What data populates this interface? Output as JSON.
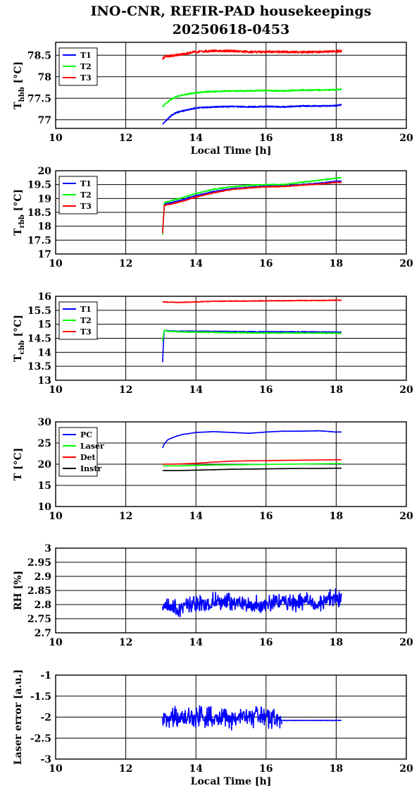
{
  "figure": {
    "title_line1": "INO-CNR, REFIR-PAD housekeepings",
    "title_line2": "20250618-0453"
  },
  "chart_data": [
    {
      "type": "line",
      "ylabel_main": "T",
      "ylabel_sub": "hbb",
      "ylabel_unit": "[°C]",
      "xlabel": "Local Time [h]",
      "xlim": [
        10,
        20
      ],
      "ylim": [
        76.8,
        78.8
      ],
      "xticks": [
        10,
        12,
        14,
        16,
        18,
        20
      ],
      "yticks": [
        77,
        77.5,
        78,
        78.5
      ],
      "ytick_labels": [
        "77",
        "77.5",
        "78",
        "78.5"
      ],
      "grid": true,
      "legend_position": "top-left",
      "series": [
        {
          "name": "T1",
          "color": "#0000ff",
          "noise": 0.015,
          "x": [
            13.05,
            13.1,
            13.2,
            13.3,
            13.4,
            13.5,
            13.6,
            13.8,
            14.0,
            14.3,
            14.6,
            15.0,
            15.5,
            16.0,
            16.5,
            17.0,
            17.5,
            18.0,
            18.15
          ],
          "values": [
            76.9,
            76.95,
            77.02,
            77.1,
            77.15,
            77.18,
            77.2,
            77.24,
            77.27,
            77.29,
            77.3,
            77.31,
            77.3,
            77.31,
            77.3,
            77.32,
            77.32,
            77.33,
            77.35
          ]
        },
        {
          "name": "T2",
          "color": "#00ff00",
          "noise": 0.015,
          "x": [
            13.05,
            13.1,
            13.2,
            13.3,
            13.4,
            13.5,
            13.6,
            13.8,
            14.0,
            14.3,
            14.6,
            15.0,
            15.5,
            16.0,
            16.5,
            17.0,
            17.5,
            18.0,
            18.15
          ],
          "values": [
            77.3,
            77.35,
            77.42,
            77.48,
            77.52,
            77.55,
            77.57,
            77.6,
            77.63,
            77.65,
            77.66,
            77.67,
            77.67,
            77.68,
            77.67,
            77.69,
            77.69,
            77.7,
            77.71
          ]
        },
        {
          "name": "T3",
          "color": "#ff0000",
          "noise": 0.025,
          "x": [
            13.05,
            13.1,
            13.2,
            13.4,
            13.6,
            13.8,
            14.0,
            14.5,
            15.0,
            15.5,
            16.0,
            16.5,
            17.0,
            17.5,
            18.0,
            18.15
          ],
          "values": [
            78.42,
            78.46,
            78.48,
            78.5,
            78.52,
            78.55,
            78.58,
            78.6,
            78.6,
            78.58,
            78.58,
            78.58,
            78.57,
            78.58,
            78.59,
            78.6
          ]
        }
      ]
    },
    {
      "type": "line",
      "ylabel_main": "T",
      "ylabel_sub": "rbb",
      "ylabel_unit": "[°C]",
      "xlabel": "",
      "xlim": [
        10,
        20
      ],
      "ylim": [
        17,
        20
      ],
      "xticks": [
        10,
        12,
        14,
        16,
        18,
        20
      ],
      "yticks": [
        17,
        17.5,
        18,
        18.5,
        19,
        19.5,
        20
      ],
      "ytick_labels": [
        "17",
        "17.5",
        "18",
        "18.5",
        "19",
        "19.5",
        "20"
      ],
      "grid": true,
      "legend_position": "top-left",
      "series": [
        {
          "name": "T1",
          "color": "#0000ff",
          "noise": 0.015,
          "x": [
            13.05,
            13.1,
            13.3,
            13.6,
            14.0,
            14.5,
            15.0,
            15.5,
            16.0,
            16.5,
            17.0,
            17.5,
            18.0,
            18.15
          ],
          "values": [
            17.8,
            18.8,
            18.85,
            18.95,
            19.1,
            19.25,
            19.35,
            19.4,
            19.45,
            19.45,
            19.5,
            19.55,
            19.62,
            19.63
          ]
        },
        {
          "name": "T2",
          "color": "#00ff00",
          "noise": 0.015,
          "x": [
            13.05,
            13.1,
            13.3,
            13.6,
            14.0,
            14.5,
            15.0,
            15.5,
            16.0,
            16.5,
            17.0,
            17.5,
            18.0,
            18.15
          ],
          "values": [
            17.7,
            18.85,
            18.92,
            19.02,
            19.18,
            19.33,
            19.42,
            19.47,
            19.5,
            19.5,
            19.58,
            19.65,
            19.73,
            19.75
          ]
        },
        {
          "name": "T3",
          "color": "#ff0000",
          "noise": 0.015,
          "x": [
            13.05,
            13.1,
            13.3,
            13.6,
            14.0,
            14.5,
            15.0,
            15.5,
            16.0,
            16.5,
            17.0,
            17.5,
            18.0,
            18.15
          ],
          "values": [
            17.75,
            18.75,
            18.8,
            18.9,
            19.05,
            19.2,
            19.32,
            19.38,
            19.42,
            19.43,
            19.48,
            19.52,
            19.58,
            19.58
          ]
        }
      ]
    },
    {
      "type": "line",
      "ylabel_main": "T",
      "ylabel_sub": "cbb",
      "ylabel_unit": "[°C]",
      "xlabel": "",
      "xlim": [
        10,
        20
      ],
      "ylim": [
        13,
        16
      ],
      "xticks": [
        10,
        12,
        14,
        16,
        18,
        20
      ],
      "yticks": [
        13,
        13.5,
        14,
        14.5,
        15,
        15.5,
        16
      ],
      "ytick_labels": [
        "13",
        "13.5",
        "14",
        "14.5",
        "15",
        "15.5",
        "16"
      ],
      "grid": true,
      "legend_position": "top-left",
      "series": [
        {
          "name": "T1",
          "color": "#0000ff",
          "noise": 0.015,
          "x": [
            13.05,
            13.08,
            13.1,
            13.2,
            13.5,
            14.0,
            15.0,
            16.0,
            17.0,
            18.0,
            18.15
          ],
          "values": [
            13.65,
            14.5,
            14.78,
            14.76,
            14.75,
            14.75,
            14.74,
            14.73,
            14.73,
            14.72,
            14.72
          ]
        },
        {
          "name": "T2",
          "color": "#00ff00",
          "noise": 0.015,
          "x": [
            13.05,
            13.08,
            13.1,
            13.2,
            13.5,
            14.0,
            15.0,
            16.0,
            17.0,
            18.0,
            18.15
          ],
          "values": [
            14.4,
            14.65,
            14.78,
            14.75,
            14.73,
            14.72,
            14.7,
            14.69,
            14.69,
            14.68,
            14.68
          ]
        },
        {
          "name": "T3",
          "color": "#ff0000",
          "noise": 0.012,
          "x": [
            13.05,
            13.5,
            14.0,
            14.5,
            15.0,
            15.5,
            16.0,
            16.5,
            17.0,
            17.5,
            18.0,
            18.15
          ],
          "values": [
            15.8,
            15.78,
            15.8,
            15.82,
            15.83,
            15.83,
            15.84,
            15.84,
            15.85,
            15.85,
            15.86,
            15.86
          ]
        }
      ]
    },
    {
      "type": "line",
      "ylabel_main": "T",
      "ylabel_sub": "",
      "ylabel_unit": "[°C]",
      "xlabel": "",
      "xlim": [
        10,
        20
      ],
      "ylim": [
        10,
        30
      ],
      "xticks": [
        10,
        12,
        14,
        16,
        18,
        20
      ],
      "yticks": [
        10,
        15,
        20,
        25,
        30
      ],
      "ytick_labels": [
        "10",
        "15",
        "20",
        "25",
        "30"
      ],
      "grid": true,
      "legend_position": "top-left",
      "series": [
        {
          "name": "PC",
          "color": "#0000ff",
          "noise": 0.03,
          "x": [
            13.05,
            13.1,
            13.2,
            13.4,
            13.6,
            14.0,
            14.5,
            15.0,
            15.5,
            16.0,
            16.5,
            17.0,
            17.5,
            18.0,
            18.15
          ],
          "values": [
            23.8,
            24.8,
            25.8,
            26.5,
            27.0,
            27.5,
            27.7,
            27.5,
            27.3,
            27.6,
            27.8,
            27.8,
            27.9,
            27.6,
            27.6
          ]
        },
        {
          "name": "Laser",
          "color": "#00ff00",
          "noise": 0.02,
          "x": [
            13.05,
            13.5,
            14.0,
            14.5,
            15.0,
            15.5,
            16.0,
            16.5,
            17.0,
            17.5,
            18.0,
            18.15
          ],
          "values": [
            19.6,
            19.6,
            19.7,
            19.8,
            19.85,
            19.9,
            19.95,
            20.0,
            20.05,
            20.1,
            20.15,
            20.15
          ]
        },
        {
          "name": "Det",
          "color": "#ff0000",
          "noise": 0.02,
          "x": [
            13.05,
            13.5,
            14.0,
            14.5,
            15.0,
            15.5,
            16.0,
            16.5,
            17.0,
            17.5,
            18.0,
            18.15
          ],
          "values": [
            20.0,
            20.05,
            20.2,
            20.5,
            20.7,
            20.8,
            20.85,
            20.9,
            20.95,
            21.0,
            21.05,
            21.05
          ]
        },
        {
          "name": "Instr",
          "color": "#000000",
          "noise": 0.02,
          "x": [
            13.05,
            13.5,
            14.0,
            14.5,
            15.0,
            15.5,
            16.0,
            16.5,
            17.0,
            17.5,
            18.0,
            18.15
          ],
          "values": [
            18.5,
            18.5,
            18.6,
            18.7,
            18.8,
            18.85,
            18.9,
            18.95,
            19.0,
            19.0,
            19.05,
            19.05
          ]
        }
      ]
    },
    {
      "type": "line",
      "ylabel_main": "RH [%]",
      "ylabel_sub": "",
      "ylabel_unit": "",
      "xlabel": "",
      "xlim": [
        10,
        20
      ],
      "ylim": [
        2.7,
        3.0
      ],
      "xticks": [
        10,
        12,
        14,
        16,
        18,
        20
      ],
      "yticks": [
        2.7,
        2.75,
        2.8,
        2.85,
        2.9,
        2.95,
        3.0
      ],
      "ytick_labels": [
        "2.7",
        "2.75",
        "2.8",
        "2.85",
        "2.9",
        "2.95",
        "3"
      ],
      "grid": true,
      "legend_position": "none",
      "series": [
        {
          "name": "",
          "color": "#0000ff",
          "noise": 0.0,
          "jitter": 0.028,
          "seed": 7,
          "x": [
            13.05,
            13.5,
            14.0,
            14.5,
            15.0,
            15.5,
            16.0,
            16.5,
            17.0,
            17.5,
            18.0,
            18.15
          ],
          "values": [
            2.8,
            2.79,
            2.8,
            2.81,
            2.81,
            2.8,
            2.8,
            2.81,
            2.81,
            2.81,
            2.82,
            2.82
          ]
        }
      ]
    },
    {
      "type": "line",
      "ylabel_main": "Laser error [a.u.]",
      "ylabel_sub": "",
      "ylabel_unit": "",
      "xlabel": "Local Time [h]",
      "xlim": [
        10,
        20
      ],
      "ylim": [
        -3,
        -1
      ],
      "xticks": [
        10,
        12,
        14,
        16,
        18,
        20
      ],
      "yticks": [
        -3,
        -2.5,
        -2,
        -1.5,
        -1
      ],
      "ytick_labels": [
        "-3",
        "-2.5",
        "-2",
        "-1.5",
        "-1"
      ],
      "grid": true,
      "legend_position": "none",
      "series": [
        {
          "name": "",
          "color": "#0000ff",
          "noise": 0.0,
          "jitter": 0.22,
          "seed": 11,
          "x": [
            13.05,
            13.5,
            14.0,
            14.5,
            15.0,
            15.5,
            16.0,
            16.45
          ],
          "values": [
            -2.0,
            -2.02,
            -2.0,
            -2.0,
            -2.02,
            -2.0,
            -2.0,
            -2.05
          ]
        },
        {
          "name": "",
          "color": "#0000ff",
          "noise": 0.004,
          "seed": 13,
          "x": [
            16.45,
            17.0,
            17.5,
            18.0,
            18.15
          ],
          "values": [
            -2.08,
            -2.08,
            -2.08,
            -2.08,
            -2.08
          ]
        }
      ]
    }
  ]
}
